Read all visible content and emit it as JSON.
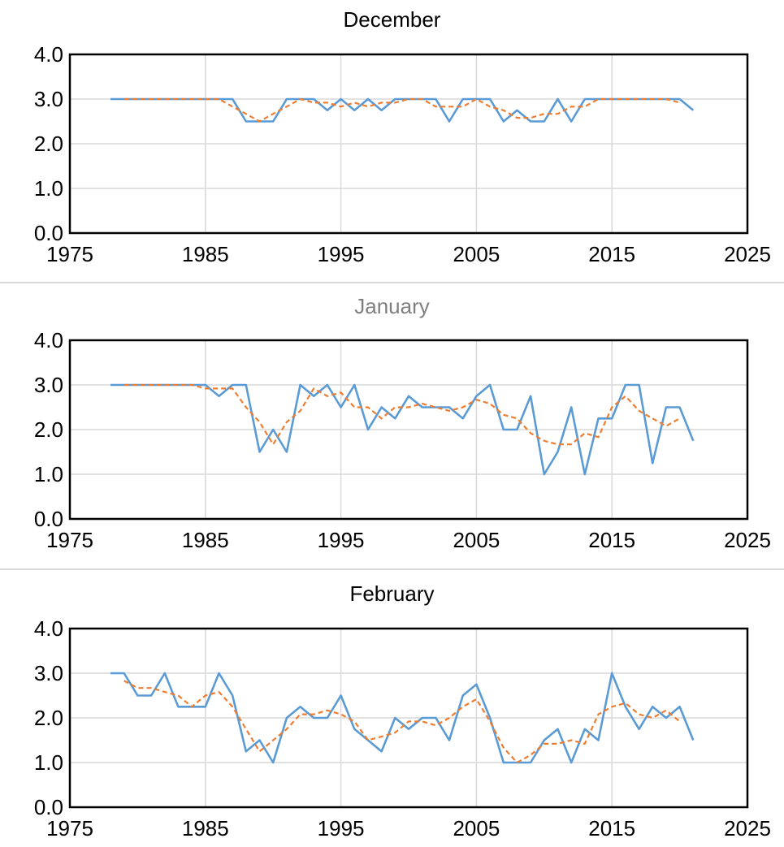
{
  "chart_data": [
    {
      "type": "line",
      "title": "December",
      "title_color": "#000000",
      "xlabel": "",
      "ylabel": "",
      "xlim": [
        1975,
        2025
      ],
      "ylim": [
        0,
        4
      ],
      "xticks": [
        1975,
        1985,
        1995,
        2005,
        2015,
        2025
      ],
      "xtick_labels": [
        "1975",
        "1985",
        "1995",
        "2005",
        "2015",
        "2025"
      ],
      "yticks": [
        0,
        1,
        2,
        3,
        4
      ],
      "ytick_labels": [
        "0.0",
        "1.0",
        "2.0",
        "3.0",
        "4.0"
      ],
      "grid": true,
      "legend": "none",
      "series": [
        {
          "color": "#5b9bd5",
          "style": "solid",
          "x": [
            1978,
            1979,
            1980,
            1981,
            1982,
            1983,
            1984,
            1985,
            1986,
            1987,
            1988,
            1989,
            1990,
            1991,
            1992,
            1993,
            1994,
            1995,
            1996,
            1997,
            1998,
            1999,
            2000,
            2001,
            2002,
            2003,
            2004,
            2005,
            2006,
            2007,
            2008,
            2009,
            2010,
            2011,
            2012,
            2013,
            2014,
            2015,
            2016,
            2017,
            2018,
            2019,
            2020,
            2021
          ],
          "y": [
            3,
            3,
            3,
            3,
            3,
            3,
            3,
            3,
            3,
            3,
            2.5,
            2.5,
            2.5,
            3,
            3,
            3,
            2.75,
            3,
            2.75,
            3,
            2.75,
            3,
            3,
            3,
            3,
            2.5,
            3,
            3,
            3,
            2.5,
            2.75,
            2.5,
            2.5,
            3,
            2.5,
            3,
            3,
            3,
            3,
            3,
            3,
            3,
            3,
            2.75
          ]
        },
        {
          "color": "#ed7d31",
          "style": "dashed",
          "x": [
            1979,
            1980,
            1981,
            1982,
            1983,
            1984,
            1985,
            1986,
            1987,
            1988,
            1989,
            1990,
            1991,
            1992,
            1993,
            1994,
            1995,
            1996,
            1997,
            1998,
            1999,
            2000,
            2001,
            2002,
            2003,
            2004,
            2005,
            2006,
            2007,
            2008,
            2009,
            2010,
            2011,
            2012,
            2013,
            2014,
            2015,
            2016,
            2017,
            2018,
            2019,
            2020
          ],
          "y": [
            3,
            3,
            3,
            3,
            3,
            3,
            3,
            3,
            2.83,
            2.67,
            2.5,
            2.67,
            2.83,
            3,
            2.92,
            2.92,
            2.83,
            2.92,
            2.83,
            2.92,
            2.92,
            3,
            3,
            2.83,
            2.83,
            2.83,
            3,
            2.83,
            2.75,
            2.58,
            2.58,
            2.67,
            2.67,
            2.83,
            2.83,
            3,
            3,
            3,
            3,
            3,
            3,
            2.92
          ]
        }
      ]
    },
    {
      "type": "line",
      "title": "January",
      "title_color": "#7f7f7f",
      "xlabel": "",
      "ylabel": "",
      "xlim": [
        1975,
        2025
      ],
      "ylim": [
        0,
        4
      ],
      "xticks": [
        1975,
        1985,
        1995,
        2005,
        2015,
        2025
      ],
      "xtick_labels": [
        "1975",
        "1985",
        "1995",
        "2005",
        "2015",
        "2025"
      ],
      "yticks": [
        0,
        1,
        2,
        3,
        4
      ],
      "ytick_labels": [
        "0.0",
        "1.0",
        "2.0",
        "3.0",
        "4.0"
      ],
      "grid": true,
      "legend": "none",
      "series": [
        {
          "color": "#5b9bd5",
          "style": "solid",
          "x": [
            1978,
            1979,
            1980,
            1981,
            1982,
            1983,
            1984,
            1985,
            1986,
            1987,
            1988,
            1989,
            1990,
            1991,
            1992,
            1993,
            1994,
            1995,
            1996,
            1997,
            1998,
            1999,
            2000,
            2001,
            2002,
            2003,
            2004,
            2005,
            2006,
            2007,
            2008,
            2009,
            2010,
            2011,
            2012,
            2013,
            2014,
            2015,
            2016,
            2017,
            2018,
            2019,
            2020,
            2021
          ],
          "y": [
            3,
            3,
            3,
            3,
            3,
            3,
            3,
            3,
            2.75,
            3,
            3,
            1.5,
            2,
            1.5,
            3,
            2.75,
            3,
            2.5,
            3,
            2,
            2.5,
            2.25,
            2.75,
            2.5,
            2.5,
            2.5,
            2.25,
            2.75,
            3,
            2,
            2,
            2.75,
            1,
            1.5,
            2.5,
            1,
            2.25,
            2.25,
            3,
            3,
            1.25,
            2.5,
            2.5,
            1.75
          ]
        },
        {
          "color": "#ed7d31",
          "style": "dashed",
          "x": [
            1979,
            1980,
            1981,
            1982,
            1983,
            1984,
            1985,
            1986,
            1987,
            1988,
            1989,
            1990,
            1991,
            1992,
            1993,
            1994,
            1995,
            1996,
            1997,
            1998,
            1999,
            2000,
            2001,
            2002,
            2003,
            2004,
            2005,
            2006,
            2007,
            2008,
            2009,
            2010,
            2011,
            2012,
            2013,
            2014,
            2015,
            2016,
            2017,
            2018,
            2019,
            2020
          ],
          "y": [
            3,
            3,
            3,
            3,
            3,
            3,
            2.92,
            2.92,
            2.92,
            2.5,
            2.17,
            1.67,
            2.17,
            2.42,
            2.92,
            2.75,
            2.83,
            2.5,
            2.5,
            2.25,
            2.5,
            2.5,
            2.58,
            2.5,
            2.42,
            2.5,
            2.67,
            2.58,
            2.33,
            2.25,
            1.92,
            1.75,
            1.67,
            1.67,
            1.92,
            1.83,
            2.5,
            2.75,
            2.42,
            2.25,
            2.08,
            2.25
          ]
        }
      ]
    },
    {
      "type": "line",
      "title": "February",
      "title_color": "#000000",
      "xlabel": "",
      "ylabel": "",
      "xlim": [
        1975,
        2025
      ],
      "ylim": [
        0,
        4
      ],
      "xticks": [
        1975,
        1985,
        1995,
        2005,
        2015,
        2025
      ],
      "xtick_labels": [
        "1975",
        "1985",
        "1995",
        "2005",
        "2015",
        "2025"
      ],
      "yticks": [
        0,
        1,
        2,
        3,
        4
      ],
      "ytick_labels": [
        "0.0",
        "1.0",
        "2.0",
        "3.0",
        "4.0"
      ],
      "grid": true,
      "legend": "none",
      "series": [
        {
          "color": "#5b9bd5",
          "style": "solid",
          "x": [
            1978,
            1979,
            1980,
            1981,
            1982,
            1983,
            1984,
            1985,
            1986,
            1987,
            1988,
            1989,
            1990,
            1991,
            1992,
            1993,
            1994,
            1995,
            1996,
            1997,
            1998,
            1999,
            2000,
            2001,
            2002,
            2003,
            2004,
            2005,
            2006,
            2007,
            2008,
            2009,
            2010,
            2011,
            2012,
            2013,
            2014,
            2015,
            2016,
            2017,
            2018,
            2019,
            2020,
            2021
          ],
          "y": [
            3,
            3,
            2.5,
            2.5,
            3,
            2.25,
            2.25,
            2.25,
            3,
            2.5,
            1.25,
            1.5,
            1,
            2,
            2.25,
            2,
            2,
            2.5,
            1.75,
            1.5,
            1.25,
            2,
            1.75,
            2,
            2,
            1.5,
            2.5,
            2.75,
            2,
            1,
            1,
            1,
            1.5,
            1.75,
            1,
            1.75,
            1.5,
            3,
            2.25,
            1.75,
            2.25,
            2,
            2.25,
            1.5
          ]
        },
        {
          "color": "#ed7d31",
          "style": "dashed",
          "x": [
            1979,
            1980,
            1981,
            1982,
            1983,
            1984,
            1985,
            1986,
            1987,
            1988,
            1989,
            1990,
            1991,
            1992,
            1993,
            1994,
            1995,
            1996,
            1997,
            1998,
            1999,
            2000,
            2001,
            2002,
            2003,
            2004,
            2005,
            2006,
            2007,
            2008,
            2009,
            2010,
            2011,
            2012,
            2013,
            2014,
            2015,
            2016,
            2017,
            2018,
            2019,
            2020
          ],
          "y": [
            2.83,
            2.67,
            2.67,
            2.58,
            2.5,
            2.25,
            2.5,
            2.58,
            2.25,
            1.75,
            1.25,
            1.5,
            1.75,
            2.08,
            2.08,
            2.17,
            2.08,
            1.92,
            1.5,
            1.58,
            1.67,
            1.92,
            1.92,
            1.83,
            2,
            2.25,
            2.42,
            1.92,
            1.33,
            1,
            1.17,
            1.42,
            1.42,
            1.5,
            1.42,
            2.08,
            2.25,
            2.33,
            2.08,
            2,
            2.17,
            1.92
          ]
        }
      ]
    }
  ]
}
